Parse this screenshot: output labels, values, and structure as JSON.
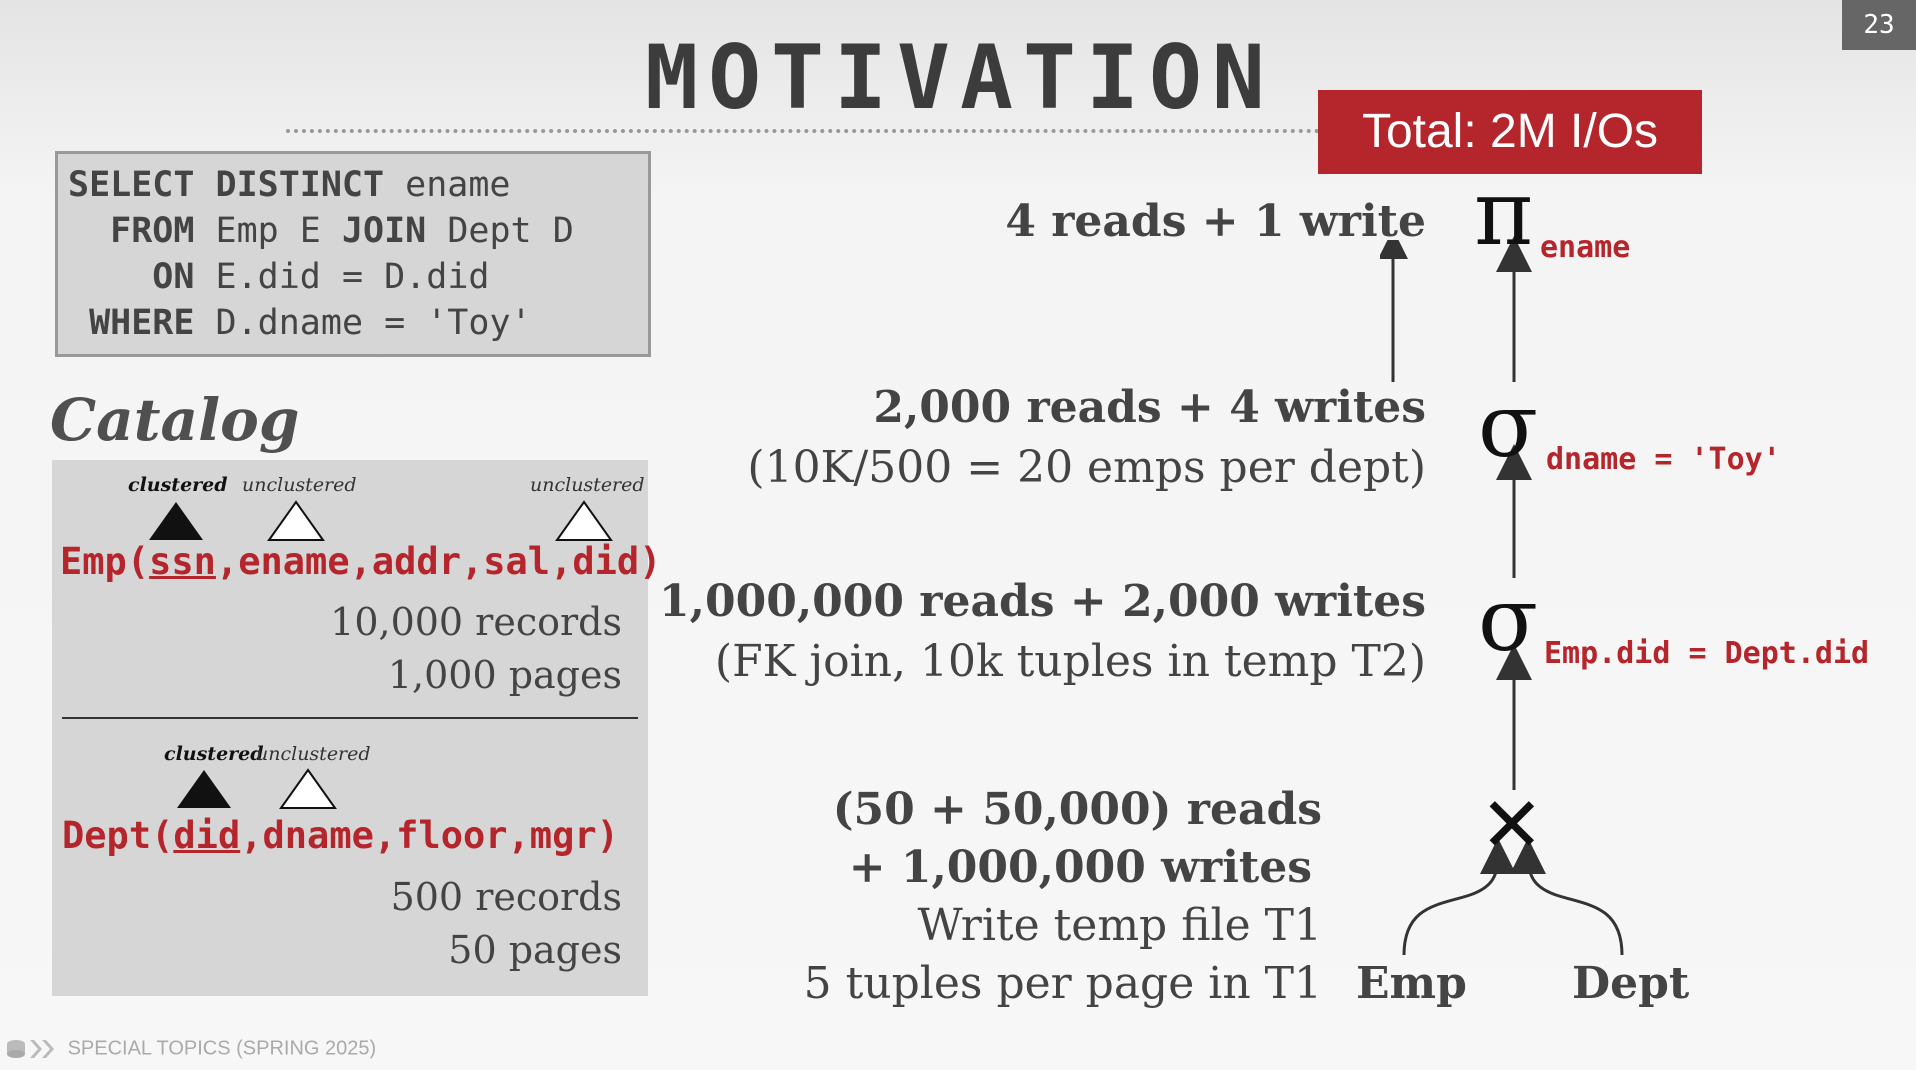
{
  "slide_number": "23",
  "title": "MOTIVATION",
  "total_badge": "Total: 2M I/Os",
  "sql": {
    "select_kw": "SELECT DISTINCT",
    "select_rest": " ename",
    "from_kw": "FROM",
    "from_a": " Emp E ",
    "join_kw": "JOIN",
    "from_b": " Dept D",
    "on_kw": "ON",
    "on_rest": " E.did = D.did",
    "where_kw": "WHERE",
    "where_rest": " D.dname = 'Toy'"
  },
  "catalog": {
    "title": "Catalog",
    "emp": {
      "index_labels": [
        "clustered",
        "unclustered",
        "unclustered"
      ],
      "schema_prefix": "Emp(",
      "schema_pk": "ssn",
      "schema_rest": ",ename,addr,sal,did)",
      "records": "10,000 records",
      "pages": "1,000 pages"
    },
    "dept": {
      "index_labels": [
        "clustered",
        "unclustered"
      ],
      "schema_prefix": "Dept(",
      "schema_pk": "did",
      "schema_rest": ",dname,floor,mgr)",
      "records": "500 records",
      "pages": "50 pages"
    }
  },
  "plan": {
    "projection": {
      "symbol": "π",
      "attr": "ename",
      "cost": "4 reads + 1 write"
    },
    "select_dname": {
      "symbol": "σ",
      "predicate": "dname = 'Toy'",
      "cost": "2,000 reads + 4 writes",
      "note": "(10K/500 = 20 emps per dept)"
    },
    "select_join": {
      "symbol": "σ",
      "predicate": "Emp.did = Dept.did",
      "cost": "1,000,000 reads + 2,000 writes",
      "note": "(FK join, 10k tuples in temp T2)"
    },
    "cross": {
      "symbol": "✕",
      "cost_line1": "(50 + 50,000) reads",
      "cost_line2": "+ 1,000,000 writes",
      "note1": "Write temp file T1",
      "note2": "5 tuples per page in T1"
    },
    "leaf_left": "Emp",
    "leaf_right": "Dept"
  },
  "footer": "SPECIAL TOPICS (SPRING 2025)"
}
